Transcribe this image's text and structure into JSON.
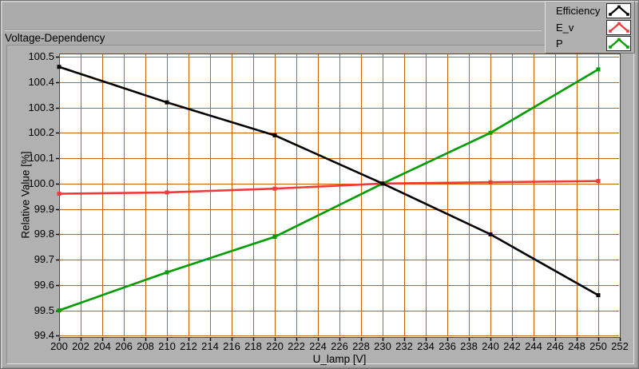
{
  "title": "Voltage-Dependency",
  "legend": {
    "items": [
      {
        "label": "Efficiency",
        "color": "#000000"
      },
      {
        "label": "E_v",
        "color": "#f13a3a"
      },
      {
        "label": "P",
        "color": "#009c00"
      }
    ]
  },
  "chart_data": {
    "type": "line",
    "title": "Voltage-Dependency",
    "xlabel": "U_lamp [V]",
    "ylabel": "Relative Value [%]",
    "xlim": [
      200,
      252
    ],
    "ylim": [
      99.4,
      100.5
    ],
    "xticks": [
      200,
      202,
      204,
      206,
      208,
      210,
      212,
      214,
      216,
      218,
      220,
      222,
      224,
      226,
      228,
      230,
      232,
      234,
      236,
      238,
      240,
      242,
      244,
      246,
      248,
      250,
      252
    ],
    "yticks": [
      "100.5",
      "100.4",
      "100.3",
      "100.2",
      "100.1",
      "100.0",
      "99.9",
      "99.8",
      "99.7",
      "99.6",
      "99.5",
      "99.4"
    ],
    "grid": true,
    "grid_color": "#c76300",
    "plot_bg": "#ffffff",
    "legend_position": "top-right",
    "x": [
      200,
      210,
      220,
      230,
      240,
      250
    ],
    "series": [
      {
        "name": "Efficiency",
        "color": "#000000",
        "marker": "square",
        "values": [
          100.46,
          100.32,
          100.19,
          100.0,
          99.8,
          99.56
        ]
      },
      {
        "name": "E_v",
        "color": "#f13a3a",
        "marker": "square",
        "values": [
          99.96,
          99.965,
          99.98,
          100.0,
          100.005,
          100.01
        ]
      },
      {
        "name": "P",
        "color": "#009c00",
        "marker": "square",
        "values": [
          99.5,
          99.65,
          99.79,
          100.0,
          100.2,
          100.45
        ]
      }
    ]
  },
  "colors": {
    "page_bg": "#ababab",
    "panel_bg": "#b1b1b1",
    "text": "#000000"
  }
}
